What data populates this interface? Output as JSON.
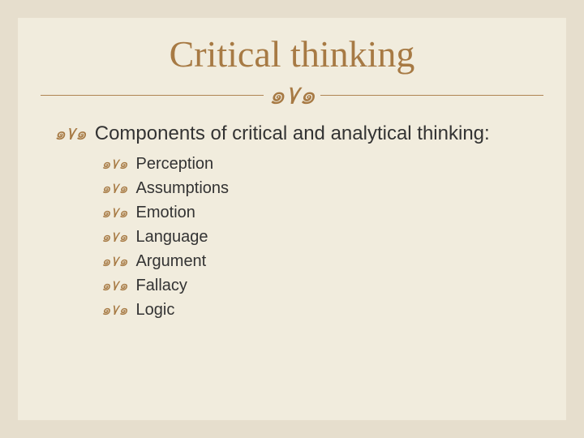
{
  "colors": {
    "slide_bg": "#f1ecdd",
    "border": "#e6decd",
    "accent": "#a77a44",
    "text": "#333333"
  },
  "typography": {
    "title_fontsize": 46,
    "level1_fontsize": 24,
    "sub_fontsize": 20,
    "title_font": "Times New Roman"
  },
  "flourish_glyph": "📜",
  "bullet_glyph": "๑۷๑",
  "title": "Critical thinking",
  "level1_text": "Components of critical and analytical thinking:",
  "subitems": [
    "Perception",
    "Assumptions",
    "Emotion",
    "Language",
    "Argument",
    "Fallacy",
    "Logic"
  ]
}
